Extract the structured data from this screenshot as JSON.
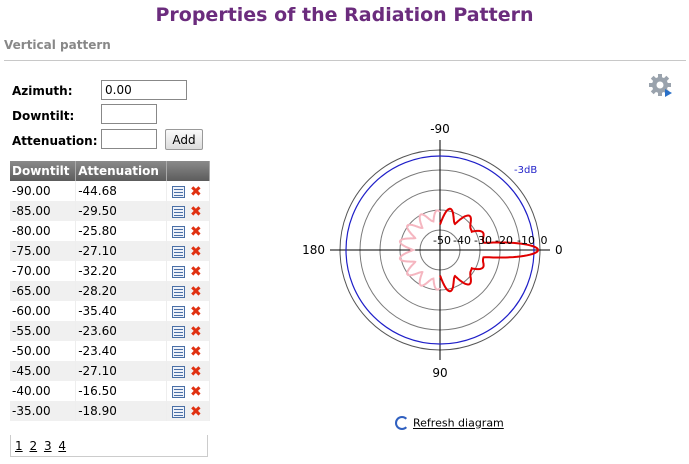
{
  "page": {
    "title": "Properties of the Radiation Pattern",
    "subtitle": "Vertical pattern"
  },
  "form": {
    "azimuth_label": "Azimuth:",
    "azimuth_value": "0.00",
    "downtilt_label": "Downtilt:",
    "downtilt_value": "",
    "attenuation_label": "Attenuation:",
    "attenuation_value": "",
    "add_label": "Add"
  },
  "table": {
    "headers": [
      "Downtilt",
      "Attenuation"
    ],
    "rows": [
      [
        "-90.00",
        "-44.68"
      ],
      [
        "-85.00",
        "-29.50"
      ],
      [
        "-80.00",
        "-25.80"
      ],
      [
        "-75.00",
        "-27.10"
      ],
      [
        "-70.00",
        "-32.20"
      ],
      [
        "-65.00",
        "-28.20"
      ],
      [
        "-60.00",
        "-35.40"
      ],
      [
        "-55.00",
        "-23.60"
      ],
      [
        "-50.00",
        "-23.40"
      ],
      [
        "-45.00",
        "-27.10"
      ],
      [
        "-40.00",
        "-16.50"
      ],
      [
        "-35.00",
        "-18.90"
      ]
    ],
    "row_icons": [
      "edit-icon",
      "delete-icon"
    ],
    "pages": [
      "1",
      "2",
      "3",
      "4"
    ]
  },
  "diagram": {
    "angle_labels": {
      "top": "-90",
      "bottom": "90",
      "left": "180",
      "right": "0"
    },
    "ring_labels": [
      "-50",
      "-40",
      "-30",
      "-20",
      "-10",
      "0"
    ],
    "reference_label": "-3dB",
    "refresh_label": "Refresh diagram",
    "colors": {
      "reference": "#1f1fc8",
      "pattern": "#e00000",
      "pattern_back": "#f5b6c0",
      "grid": "#7a7a7a"
    }
  },
  "icons": {
    "settings": "gear-icon",
    "refresh": "refresh-icon"
  }
}
